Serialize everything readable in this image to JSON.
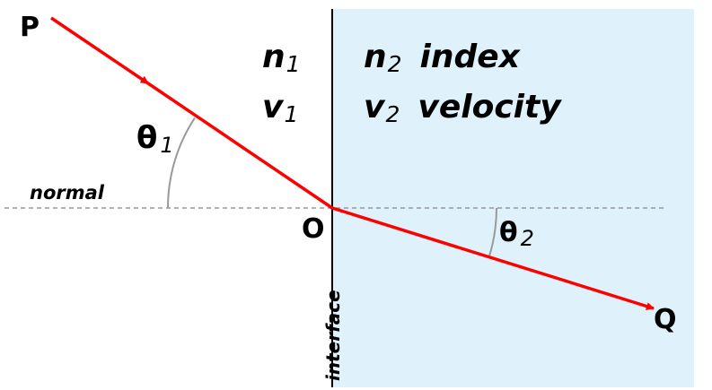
{
  "colors": {
    "medium2_fill": "#dff1fb",
    "ray": "#ff0000",
    "normal_line": "#999999",
    "angle_arc": "#999999",
    "interface_line": "#000000",
    "text": "#000000"
  },
  "labels": {
    "point_p": "P",
    "point_q": "Q",
    "point_o": "O",
    "normal": "normal",
    "interface": "interface",
    "n1": {
      "main": "n",
      "sub": "1"
    },
    "v1": {
      "main": "v",
      "sub": "1"
    },
    "n2": {
      "main": "n",
      "sub": "2",
      "suffix": "index"
    },
    "v2": {
      "main": "v",
      "sub": "2",
      "suffix": "velocity"
    },
    "theta1": {
      "main": "θ",
      "sub": "1"
    },
    "theta2": {
      "main": "θ",
      "sub": "2"
    }
  }
}
